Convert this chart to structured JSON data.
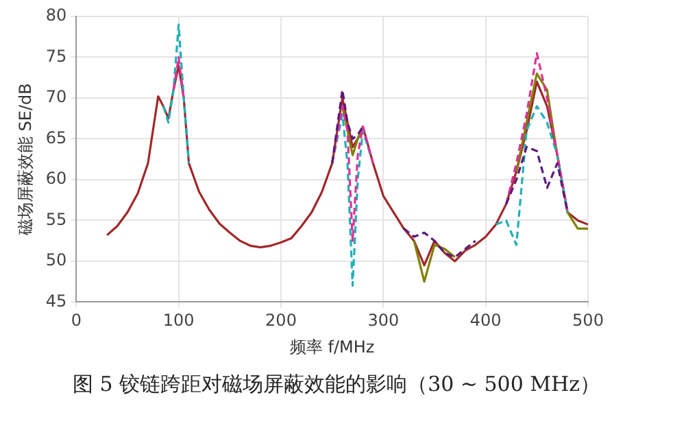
{
  "chart_data": {
    "type": "line",
    "xlabel": "频率 f/MHz",
    "ylabel": "磁场屏蔽效能 SE/dB",
    "annotations": [
      "图 5   铰链跨距对磁场屏蔽效能的影响（30 ~ 500 MHz）"
    ],
    "x": [
      30,
      40,
      50,
      60,
      70,
      80,
      85,
      90,
      95,
      100,
      105,
      110,
      120,
      130,
      140,
      150,
      160,
      170,
      180,
      190,
      200,
      210,
      220,
      230,
      240,
      250,
      260,
      265,
      270,
      275,
      280,
      290,
      300,
      310,
      320,
      330,
      340,
      350,
      360,
      370,
      380,
      390,
      400,
      410,
      420,
      430,
      440,
      450,
      460,
      470,
      480,
      490,
      500
    ],
    "xlim": [
      0,
      500
    ],
    "xticks": [
      0,
      100,
      200,
      300,
      400,
      500
    ],
    "ylim": [
      45,
      80
    ],
    "yticks": [
      45,
      50,
      55,
      60,
      65,
      70,
      75,
      80
    ],
    "grid": true,
    "legend": false,
    "marker": "none",
    "series": [
      {
        "color": "#a0282a",
        "line_style": "solid",
        "values": [
          53.2,
          54.3,
          56,
          58.3,
          62,
          70.2,
          69,
          67.5,
          71,
          74,
          70,
          62,
          58.5,
          56.3,
          54.6,
          53.5,
          52.5,
          51.9,
          51.7,
          51.9,
          52.3,
          52.8,
          54.3,
          56,
          58.5,
          62,
          70,
          67,
          64,
          65,
          66.5,
          62,
          58,
          56,
          54,
          52.5,
          49.5,
          52.5,
          51,
          50,
          51.3,
          52,
          53,
          54.5,
          57,
          61,
          66,
          72,
          69,
          63,
          56,
          55,
          54.5
        ]
      },
      {
        "color": "#808000",
        "line_style": "solid",
        "values": [
          null,
          null,
          null,
          null,
          null,
          null,
          null,
          null,
          null,
          null,
          null,
          null,
          null,
          null,
          null,
          null,
          null,
          null,
          null,
          null,
          null,
          null,
          null,
          null,
          null,
          null,
          69,
          66,
          63,
          65,
          66.5,
          null,
          null,
          null,
          null,
          52.5,
          47.5,
          52,
          51.5,
          50.5,
          null,
          null,
          null,
          null,
          null,
          61,
          67,
          73,
          71,
          63,
          56,
          54,
          54
        ]
      },
      {
        "color": "#20b0b8",
        "line_style": "dashed",
        "values": [
          null,
          null,
          null,
          null,
          null,
          null,
          69,
          67,
          71,
          79,
          70,
          62,
          null,
          null,
          null,
          null,
          null,
          null,
          null,
          null,
          null,
          null,
          null,
          null,
          null,
          62,
          68,
          62,
          47,
          60,
          66,
          62,
          null,
          null,
          null,
          null,
          null,
          null,
          null,
          null,
          null,
          null,
          null,
          54.5,
          55,
          52,
          66,
          69,
          67,
          63,
          56,
          null,
          null
        ]
      },
      {
        "color": "#e0309a",
        "line_style": "dashed",
        "values": [
          null,
          null,
          null,
          null,
          null,
          null,
          null,
          null,
          71,
          75,
          70,
          null,
          null,
          null,
          null,
          null,
          null,
          null,
          null,
          null,
          null,
          null,
          null,
          null,
          null,
          62,
          69,
          66,
          52.5,
          63,
          66.5,
          62,
          null,
          null,
          null,
          null,
          null,
          null,
          null,
          null,
          null,
          null,
          null,
          null,
          57,
          62,
          68,
          75.5,
          70,
          63,
          56,
          null,
          null
        ]
      },
      {
        "color": "#5a1a7a",
        "line_style": "dashed",
        "values": [
          null,
          null,
          null,
          null,
          null,
          null,
          null,
          null,
          null,
          null,
          null,
          null,
          null,
          null,
          null,
          null,
          null,
          null,
          null,
          null,
          null,
          null,
          null,
          null,
          null,
          62,
          71,
          67,
          65,
          65.5,
          66.5,
          null,
          null,
          null,
          54,
          53,
          53.5,
          52.5,
          51,
          50.5,
          51.5,
          52.5,
          null,
          null,
          57,
          60,
          64,
          63.5,
          59,
          62,
          56,
          null,
          null
        ]
      }
    ]
  }
}
